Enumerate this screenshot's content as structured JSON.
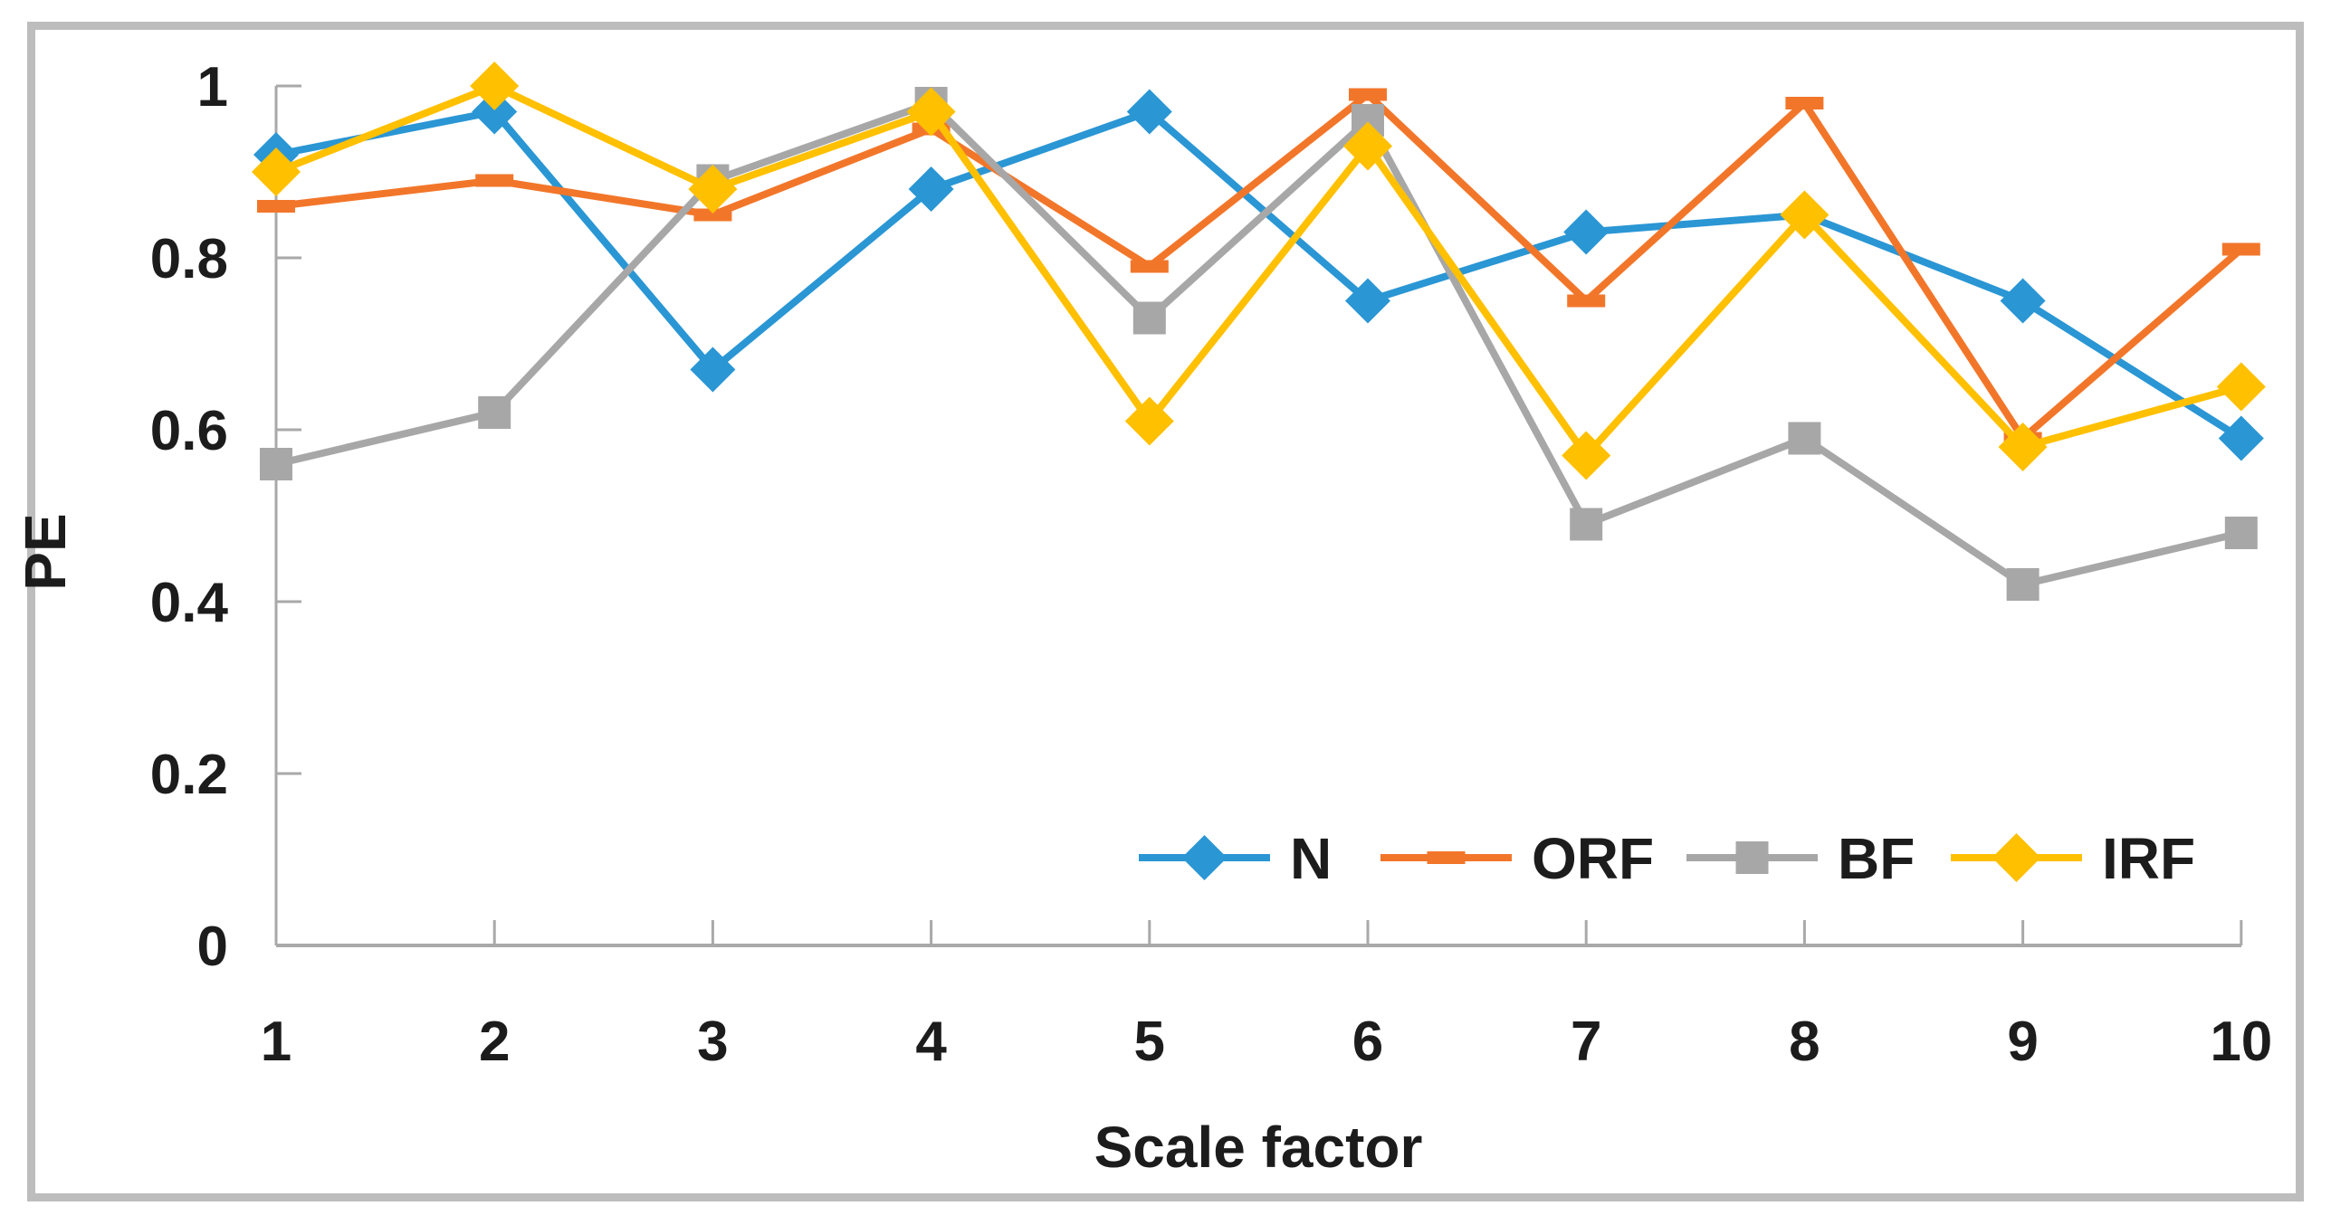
{
  "chart_data": {
    "type": "line",
    "title": "",
    "xlabel": "Scale factor",
    "ylabel": "PE",
    "categories": [
      "1",
      "2",
      "3",
      "4",
      "5",
      "6",
      "7",
      "8",
      "9",
      "10"
    ],
    "x": [
      1,
      2,
      3,
      4,
      5,
      6,
      7,
      8,
      9,
      10
    ],
    "ylim": [
      0,
      1
    ],
    "y_ticks": [
      0,
      0.2,
      0.4,
      0.6,
      0.8,
      1
    ],
    "y_tick_labels": [
      "0",
      "0.2",
      "0.4",
      "0.6",
      "0.8",
      "1"
    ],
    "grid": false,
    "legend_position": "bottom-inside",
    "axis_color": "#a9a9a9",
    "text_color": "#1c1c1c",
    "series": [
      {
        "name": "N",
        "color": "#2a96d4",
        "marker": "diamond",
        "values": [
          0.92,
          0.97,
          0.67,
          0.88,
          0.97,
          0.75,
          0.83,
          0.85,
          0.75,
          0.59
        ]
      },
      {
        "name": "ORF",
        "color": "#f2762a",
        "marker": "dash",
        "values": [
          0.86,
          0.89,
          0.85,
          0.95,
          0.79,
          0.99,
          0.75,
          0.98,
          0.59,
          0.81
        ]
      },
      {
        "name": "BF",
        "color": "#a7a7a7",
        "marker": "square",
        "values": [
          0.56,
          0.62,
          0.89,
          0.98,
          0.73,
          0.96,
          0.49,
          0.59,
          0.42,
          0.48
        ]
      },
      {
        "name": "IRF",
        "color": "#ffc000",
        "marker": "diamond",
        "values": [
          0.9,
          1.0,
          0.88,
          0.97,
          0.61,
          0.93,
          0.57,
          0.85,
          0.58,
          0.65
        ]
      }
    ]
  }
}
